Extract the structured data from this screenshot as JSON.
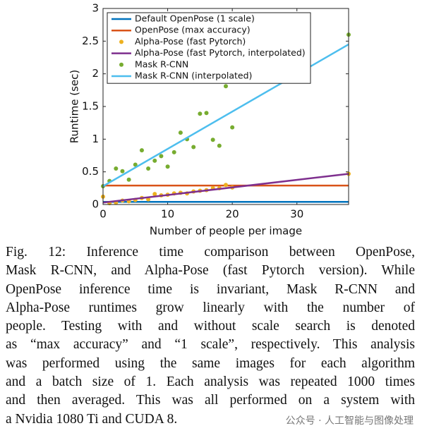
{
  "chart_data": {
    "type": "line",
    "xlabel": "Number of people per image",
    "ylabel": "Runtime (sec)",
    "xlim": [
      0,
      38
    ],
    "ylim": [
      0,
      3
    ],
    "xticks": [
      0,
      10,
      20,
      30
    ],
    "yticks": [
      0,
      0.5,
      1,
      1.5,
      2,
      2.5,
      3
    ],
    "legend": "upper left",
    "series": [
      {
        "name": "Default OpenPose (1 scale)",
        "color": "#0072bd",
        "style": "line",
        "x": [
          0,
          38
        ],
        "values": [
          0.04,
          0.04
        ]
      },
      {
        "name": "OpenPose (max accuracy)",
        "color": "#d95319",
        "style": "line",
        "x": [
          0,
          38
        ],
        "values": [
          0.29,
          0.29
        ]
      },
      {
        "name": "Alpha-Pose (fast Pytorch)",
        "color": "#edb120",
        "style": "scatter",
        "x": [
          0,
          1,
          2,
          3,
          4,
          5,
          6,
          7,
          8,
          9,
          10,
          11,
          12,
          13,
          14,
          15,
          16,
          17,
          18,
          19,
          20,
          38
        ],
        "values": [
          0.12,
          0.02,
          0.03,
          0.06,
          0.05,
          0.07,
          0.1,
          0.08,
          0.16,
          0.14,
          0.15,
          0.17,
          0.18,
          0.17,
          0.2,
          0.21,
          0.22,
          0.25,
          0.25,
          0.3,
          0.26,
          0.47
        ]
      },
      {
        "name": "Alpha-Pose (fast Pytorch, interpolated)",
        "color": "#7e2f8e",
        "style": "line",
        "x": [
          0,
          38
        ],
        "values": [
          0.03,
          0.47
        ]
      },
      {
        "name": "Mask R-CNN",
        "color": "#77ac30",
        "style": "scatter",
        "x": [
          0,
          1,
          2,
          3,
          4,
          5,
          6,
          7,
          8,
          9,
          10,
          11,
          12,
          13,
          14,
          15,
          16,
          17,
          18,
          19,
          20,
          38
        ],
        "values": [
          0.28,
          0.36,
          0.55,
          0.51,
          0.38,
          0.61,
          0.83,
          0.55,
          0.67,
          0.74,
          0.58,
          0.8,
          1.1,
          1.0,
          0.88,
          1.39,
          1.4,
          0.99,
          0.9,
          1.81,
          1.18,
          2.6
        ]
      },
      {
        "name": "Mask R-CNN (interpolated)",
        "color": "#4dbeee",
        "style": "line",
        "x": [
          0,
          38
        ],
        "values": [
          0.28,
          2.45
        ]
      }
    ]
  },
  "caption": [
    "Fig. 12: Inference time comparison between OpenPose,",
    "Mask R-CNN, and Alpha-Pose (fast Pytorch version). While",
    "OpenPose inference time is invariant, Mask R-CNN and",
    "Alpha-Pose runtimes grow linearly with the number of",
    "people. Testing with and without scale search is denoted",
    "as “max accuracy” and “1 scale”, respectively. This analysis",
    "was performed using the same images for each algorithm",
    "and a batch size of 1. Each analysis was repeated 1000 times",
    "and then averaged. This was all performed on a system with",
    "a Nvidia 1080 Ti and CUDA 8."
  ],
  "watermark": "公众号 · 人工智能与图像处理"
}
